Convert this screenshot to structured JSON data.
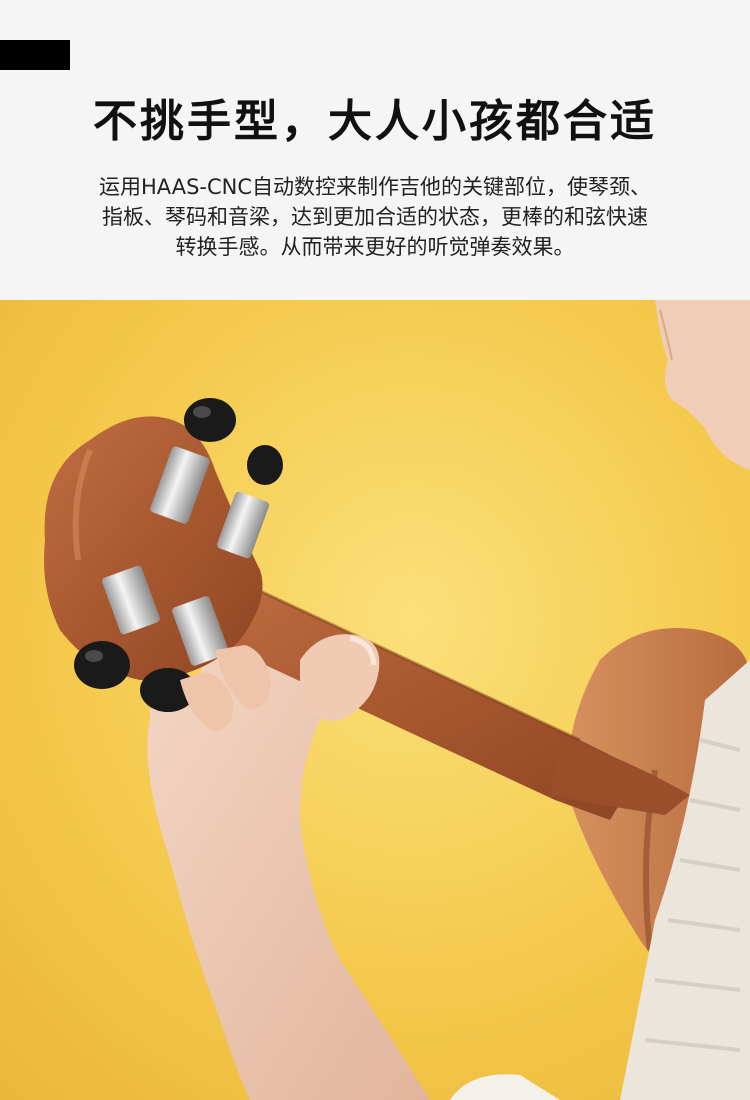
{
  "header": {
    "title": "不挑手型，大人小孩都合适",
    "description_lines": [
      "运用HAAS-CNC自动数控来制作吉他的关键部位，使琴颈、",
      "指板、琴码和音梁，达到更加合适的状态，更棒的和弦快速",
      "转换手感。从而带来更好的听觉弹奏效果。"
    ]
  },
  "colors": {
    "accent": "#000000",
    "background": "#f5f5f5",
    "photo_background": "#f3c84a",
    "wood": "#b0603a"
  },
  "photo": {
    "icon": "ukulele-headstock-hand-photo"
  }
}
